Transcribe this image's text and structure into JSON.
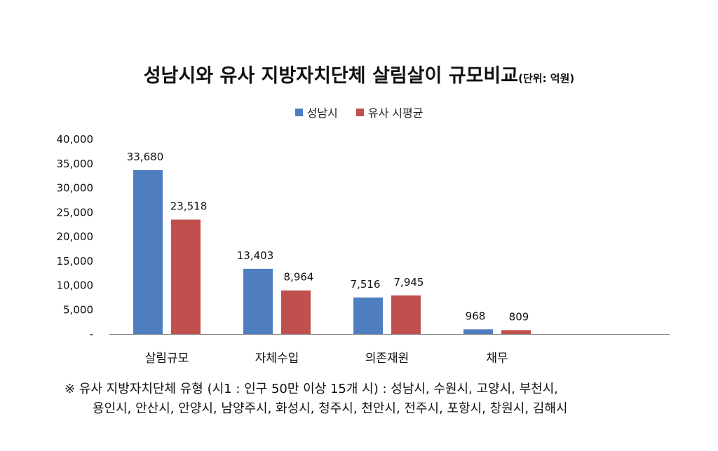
{
  "chart_data": {
    "type": "bar",
    "title": "성남시와 유사 지방자치단체 살림살이 규모비교",
    "unit_note": "(단위: 억원)",
    "categories": [
      "살림규모",
      "자체수입",
      "의존재원",
      "채무"
    ],
    "series": [
      {
        "name": "성남시",
        "values": [
          33680,
          13403,
          7516,
          968
        ],
        "labels": [
          "33,680",
          "13,403",
          "7,516",
          "968"
        ],
        "color": "#4f7ec0"
      },
      {
        "name": "유사 시평균",
        "values": [
          23518,
          8964,
          7945,
          809
        ],
        "labels": [
          "23,518",
          "8,964",
          "7,945",
          "809"
        ],
        "color": "#c0504d"
      }
    ],
    "ylim": [
      0,
      40000
    ],
    "yticks": [
      0,
      5000,
      10000,
      15000,
      20000,
      25000,
      30000,
      35000,
      40000
    ],
    "ytick_labels": [
      "-",
      "5,000",
      "10,000",
      "15,000",
      "20,000",
      "25,000",
      "30,000",
      "35,000",
      "40,000"
    ],
    "legend_position": "top-center",
    "grid": false
  },
  "footnote": {
    "line1": "※  유사 지방자치단체 유형 (시1 : 인구 50만 이상  15개 시) : 성남시, 수원시, 고양시, 부천시,",
    "line2": "용인시, 안산시, 안양시, 남양주시, 화성시, 청주시, 천안시, 전주시, 포항시, 창원시, 김해시"
  }
}
